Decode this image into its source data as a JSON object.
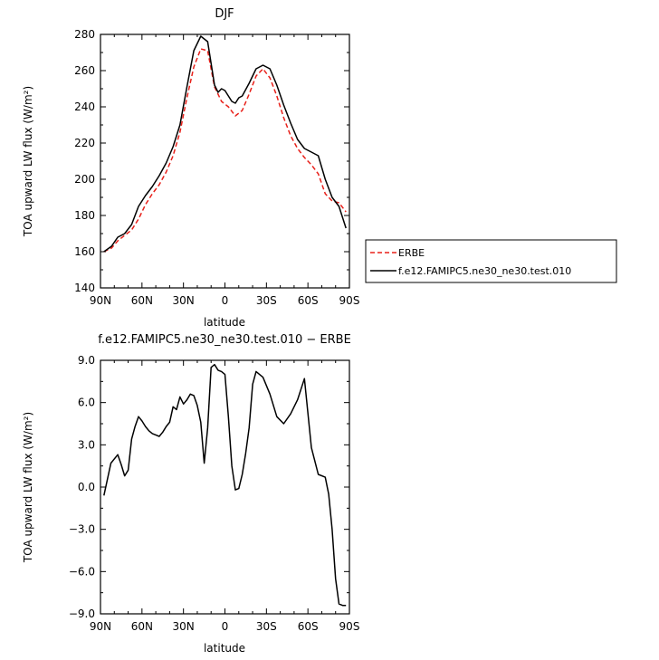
{
  "chart_data": [
    {
      "type": "line",
      "title": "DJF",
      "xlabel": "latitude",
      "ylabel": "TOA upward LW flux (W/m²)",
      "x_direction": "north-to-south",
      "xlim": [
        -90,
        90
      ],
      "ylim": [
        140,
        280
      ],
      "xticks": [
        -90,
        -60,
        -30,
        0,
        30,
        60,
        90
      ],
      "xtick_labels": [
        "90N",
        "60N",
        "30N",
        "0",
        "30S",
        "60S",
        "90S"
      ],
      "yticks": [
        140,
        160,
        180,
        200,
        220,
        240,
        260,
        280
      ],
      "ytick_labels": [
        "140",
        "160",
        "180",
        "200",
        "220",
        "240",
        "260",
        "280"
      ],
      "legend": {
        "placement": "right",
        "entries": [
          "ERBE",
          "f.e12.FAMIPC5.ne30_ne30.test.010"
        ]
      },
      "series": [
        {
          "name": "ERBE",
          "color": "#e8201a",
          "style": "dashed",
          "x": [
            -87.5,
            -82,
            -77.5,
            -72.5,
            -67.5,
            -62.5,
            -57.5,
            -52.5,
            -47.5,
            -42.5,
            -37.5,
            -32.5,
            -27.5,
            -22.5,
            -17.5,
            -12.5,
            -7.5,
            -2.5,
            2.5,
            7.5,
            12.5,
            17.5,
            22.5,
            27.5,
            32.5,
            37.5,
            42.5,
            47.5,
            52.5,
            57.5,
            62.5,
            67.5,
            72.5,
            77.5,
            82.5,
            87.5
          ],
          "y": [
            160,
            162,
            166,
            169,
            172,
            178,
            186,
            192,
            197,
            204,
            213,
            226,
            245,
            262,
            272,
            271,
            251,
            243,
            240,
            235,
            238,
            247,
            257,
            261,
            256,
            246,
            234,
            224,
            217,
            212,
            208,
            203,
            192,
            188,
            187,
            182
          ]
        },
        {
          "name": "f.e12.FAMIPC5.ne30_ne30.test.010",
          "color": "#000000",
          "style": "solid",
          "x": [
            -87.5,
            -82,
            -77.5,
            -72.5,
            -67.5,
            -62.5,
            -57.5,
            -52.5,
            -47.5,
            -42.5,
            -37.5,
            -32.5,
            -27.5,
            -22.5,
            -17.5,
            -12.5,
            -7.5,
            -5,
            -2.5,
            0,
            2.5,
            5,
            7.5,
            10,
            12.5,
            17.5,
            22.5,
            27.5,
            32.5,
            37.5,
            42.5,
            47.5,
            52.5,
            57.5,
            62.5,
            67.5,
            72.5,
            77.5,
            82.5,
            87.5
          ],
          "y": [
            160,
            163,
            168,
            170,
            175,
            185,
            191,
            196,
            202,
            209,
            218,
            230,
            251,
            271,
            279,
            276,
            252,
            248,
            250,
            249,
            246,
            243,
            242,
            245,
            246,
            253,
            261,
            263,
            261,
            252,
            241,
            231,
            222,
            217,
            215,
            213,
            200,
            190,
            185,
            173
          ]
        }
      ]
    },
    {
      "type": "line",
      "title": "f.e12.FAMIPC5.ne30_ne30.test.010 − ERBE",
      "xlabel": "latitude",
      "ylabel": "TOA upward LW flux (W/m²)",
      "x_direction": "north-to-south",
      "xlim": [
        -90,
        90
      ],
      "ylim": [
        -9,
        9
      ],
      "xticks": [
        -90,
        -60,
        -30,
        0,
        30,
        60,
        90
      ],
      "xtick_labels": [
        "90N",
        "60N",
        "30N",
        "0",
        "30S",
        "60S",
        "90S"
      ],
      "yticks": [
        -9,
        -6,
        -3,
        0,
        3,
        6,
        9
      ],
      "ytick_labels": [
        "−9.0",
        "−6.0",
        "−3.0",
        "0.0",
        "3.0",
        "6.0",
        "9.0"
      ],
      "series": [
        {
          "color": "#000000",
          "style": "solid",
          "x": [
            -87.5,
            -82.5,
            -77.5,
            -75,
            -72.5,
            -70,
            -67.5,
            -65,
            -62.5,
            -60,
            -57.5,
            -55,
            -52.5,
            -50,
            -47.5,
            -45,
            -42.5,
            -40,
            -37.5,
            -35,
            -32.5,
            -30,
            -27.5,
            -25,
            -22.5,
            -20,
            -17.5,
            -15,
            -12.5,
            -10,
            -7.5,
            -5,
            -2.5,
            0,
            2.5,
            5,
            7.5,
            10,
            12.5,
            15,
            17.5,
            20,
            22.5,
            27.5,
            32.5,
            37.5,
            42.5,
            47.5,
            52.5,
            57.5,
            62.5,
            67.5,
            72.5,
            75,
            77.5,
            80,
            82.5,
            85,
            87.5
          ],
          "y": [
            -0.6,
            1.7,
            2.3,
            1.6,
            0.8,
            1.2,
            3.4,
            4.3,
            5.0,
            4.7,
            4.3,
            4.0,
            3.8,
            3.7,
            3.6,
            3.9,
            4.3,
            4.6,
            5.7,
            5.5,
            6.4,
            5.9,
            6.2,
            6.6,
            6.5,
            5.8,
            4.6,
            1.7,
            4.2,
            8.5,
            8.7,
            8.3,
            8.2,
            8.0,
            5.0,
            1.5,
            -0.2,
            -0.1,
            0.9,
            2.4,
            4.2,
            7.3,
            8.2,
            7.8,
            6.6,
            5.0,
            4.5,
            5.2,
            6.2,
            7.7,
            2.8,
            0.9,
            0.7,
            -0.5,
            -3.0,
            -6.5,
            -8.3,
            -8.4,
            -8.4
          ]
        }
      ]
    }
  ]
}
